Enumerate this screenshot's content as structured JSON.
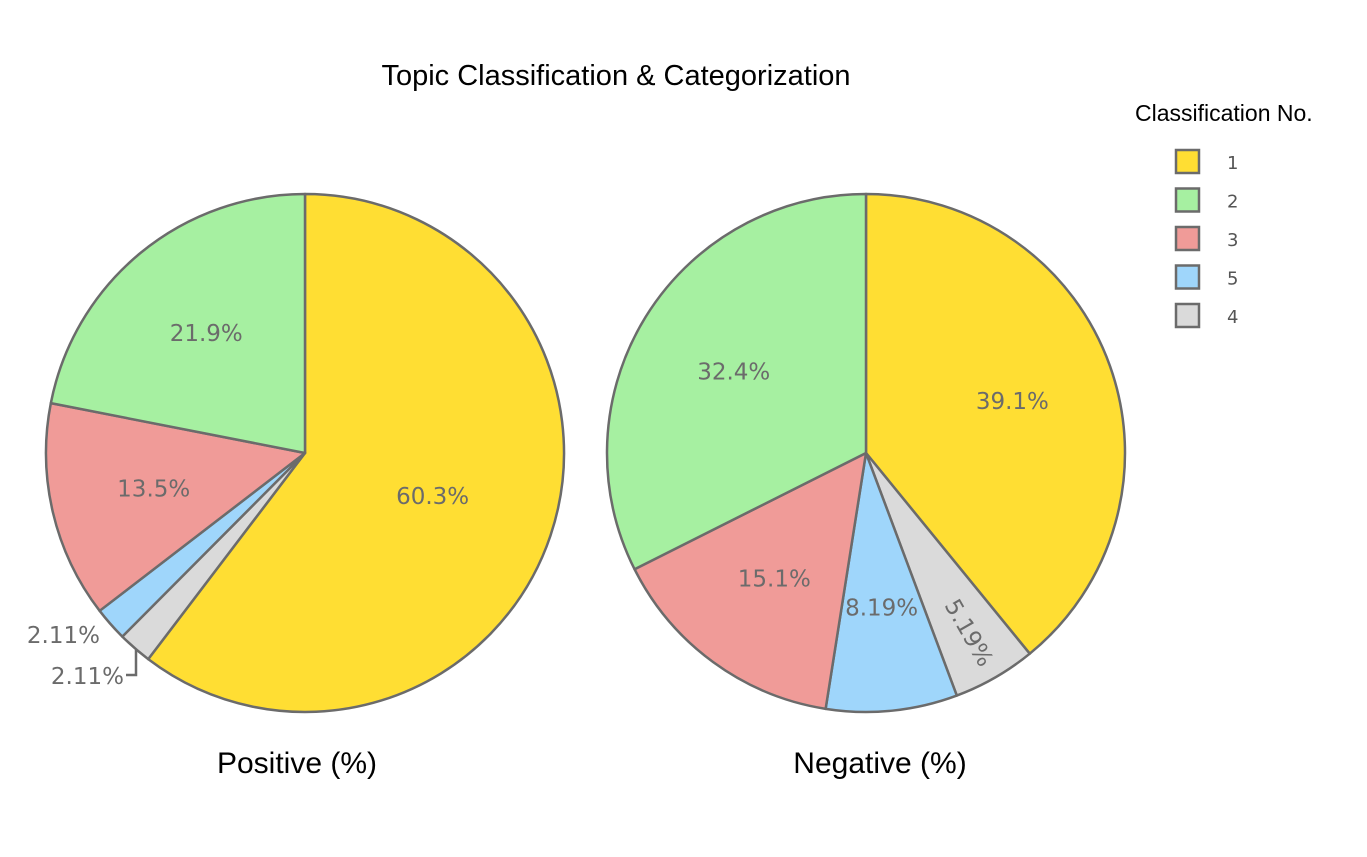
{
  "chart_data": {
    "type": "pie",
    "title": "Topic Classification & Categorization",
    "legend": {
      "title": "Classification No.",
      "placement": "top-right",
      "entries": [
        "1",
        "2",
        "3",
        "5",
        "4"
      ]
    },
    "colors": {
      "1": "#FFDE33",
      "2": "#A6F0A1",
      "3": "#F09B98",
      "5": "#9FD6FB",
      "4": "#DADADA"
    },
    "outline_color": "#6b6b6b",
    "direction": "clockwise",
    "pies": [
      {
        "name": "Positive (%)",
        "slices": [
          {
            "category": "1",
            "value": 60.3,
            "label": "60.3%"
          },
          {
            "category": "4",
            "value": 2.11,
            "label": "2.11%"
          },
          {
            "category": "5",
            "value": 2.11,
            "label": "2.11%"
          },
          {
            "category": "3",
            "value": 13.5,
            "label": "13.5%"
          },
          {
            "category": "2",
            "value": 21.9,
            "label": "21.9%"
          }
        ]
      },
      {
        "name": "Negative (%)",
        "slices": [
          {
            "category": "1",
            "value": 39.1,
            "label": "39.1%"
          },
          {
            "category": "4",
            "value": 5.19,
            "label": "5.19%"
          },
          {
            "category": "5",
            "value": 8.19,
            "label": "8.19%"
          },
          {
            "category": "3",
            "value": 15.1,
            "label": "15.1%"
          },
          {
            "category": "2",
            "value": 32.4,
            "label": "32.4%"
          }
        ]
      }
    ]
  }
}
